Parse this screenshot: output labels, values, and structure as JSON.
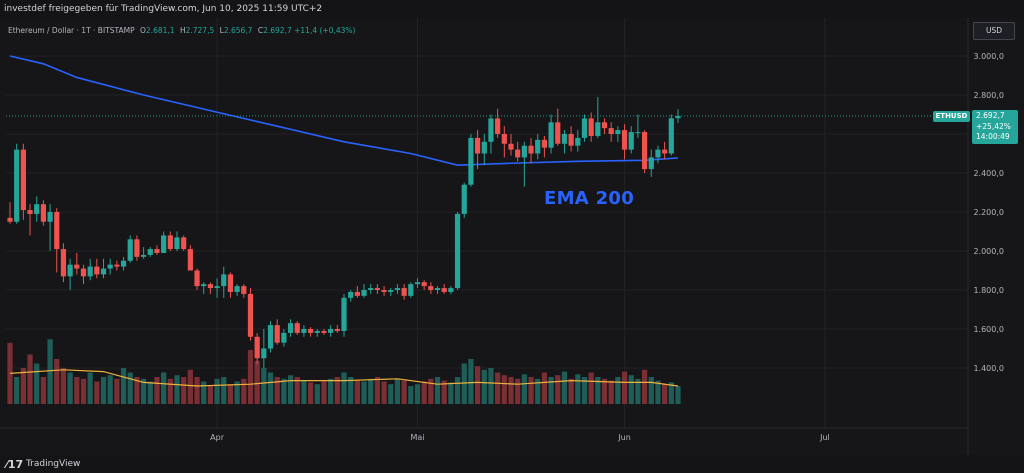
{
  "header": {
    "text": "investdef freigegeben für TradingView.com, Jun 10, 2025 11:59 UTC+2"
  },
  "legend": {
    "symbol": "Ethereum / Dollar · 1T · BITSTAMP",
    "o_label": "O",
    "o": "2.681,1",
    "h_label": "H",
    "h": "2.727,5",
    "l_label": "L",
    "l": "2.656,7",
    "c_label": "C",
    "c": "2.692,7",
    "change": "+11,4 (+0,43%)"
  },
  "currency_button": "USD",
  "price_badge": {
    "symbol": "ETHUSD",
    "price": "2.692,7",
    "change": "+25,42%",
    "countdown": "14:00:49"
  },
  "annotation": "EMA 200",
  "footer": {
    "logo": "⁄17",
    "brand": "TradingView"
  },
  "colors": {
    "up": "#26a69a",
    "down": "#ef5350",
    "ema": "#2962ff",
    "volume_ma": "#f0b13c",
    "background": "#161618"
  },
  "chart_data": {
    "type": "candlestick",
    "title": "Ethereum / Dollar · 1T · BITSTAMP",
    "ylim": [
      1200,
      3100
    ],
    "y_ticks": [
      3000,
      2800,
      2600,
      2400,
      2200,
      2000,
      1800,
      1600,
      1400
    ],
    "y_tick_labels": [
      "3.000,0",
      "2.800,0",
      "2.600,0",
      "2.400,0",
      "2.200,0",
      "2.000,0",
      "1.800,0",
      "1.600,0",
      "1.400,0"
    ],
    "x_tick_labels": [
      "Apr",
      "Mai",
      "Jun",
      "Jul"
    ],
    "x_tick_days": [
      31,
      61,
      92,
      122
    ],
    "last_price": 2692.7,
    "dates_note": "day index 0 = Mar 1, 2025",
    "candles": [
      {
        "day": 0,
        "o": 2170,
        "h": 2250,
        "l": 2140,
        "c": 2150
      },
      {
        "day": 1,
        "o": 2150,
        "h": 2550,
        "l": 2140,
        "c": 2520
      },
      {
        "day": 2,
        "o": 2520,
        "h": 2550,
        "l": 2160,
        "c": 2210
      },
      {
        "day": 3,
        "o": 2210,
        "h": 2240,
        "l": 2080,
        "c": 2190
      },
      {
        "day": 4,
        "o": 2190,
        "h": 2280,
        "l": 2150,
        "c": 2240
      },
      {
        "day": 5,
        "o": 2240,
        "h": 2260,
        "l": 2130,
        "c": 2150
      },
      {
        "day": 6,
        "o": 2150,
        "h": 2240,
        "l": 2000,
        "c": 2200
      },
      {
        "day": 7,
        "o": 2200,
        "h": 2220,
        "l": 1890,
        "c": 2010
      },
      {
        "day": 8,
        "o": 2010,
        "h": 2040,
        "l": 1840,
        "c": 1870
      },
      {
        "day": 9,
        "o": 1870,
        "h": 1960,
        "l": 1800,
        "c": 1930
      },
      {
        "day": 10,
        "o": 1930,
        "h": 1990,
        "l": 1880,
        "c": 1910
      },
      {
        "day": 11,
        "o": 1910,
        "h": 1930,
        "l": 1830,
        "c": 1870
      },
      {
        "day": 12,
        "o": 1870,
        "h": 1960,
        "l": 1850,
        "c": 1920
      },
      {
        "day": 13,
        "o": 1920,
        "h": 1960,
        "l": 1860,
        "c": 1880
      },
      {
        "day": 14,
        "o": 1880,
        "h": 1960,
        "l": 1860,
        "c": 1910
      },
      {
        "day": 15,
        "o": 1910,
        "h": 1960,
        "l": 1880,
        "c": 1930
      },
      {
        "day": 16,
        "o": 1930,
        "h": 1950,
        "l": 1900,
        "c": 1920
      },
      {
        "day": 17,
        "o": 1920,
        "h": 1970,
        "l": 1900,
        "c": 1950
      },
      {
        "day": 18,
        "o": 1950,
        "h": 2080,
        "l": 1940,
        "c": 2060
      },
      {
        "day": 19,
        "o": 2060,
        "h": 2080,
        "l": 1950,
        "c": 1970
      },
      {
        "day": 20,
        "o": 1970,
        "h": 2020,
        "l": 1960,
        "c": 1980
      },
      {
        "day": 21,
        "o": 1980,
        "h": 2020,
        "l": 1970,
        "c": 2010
      },
      {
        "day": 22,
        "o": 2010,
        "h": 2030,
        "l": 1980,
        "c": 1990
      },
      {
        "day": 23,
        "o": 1990,
        "h": 2100,
        "l": 1990,
        "c": 2080
      },
      {
        "day": 24,
        "o": 2080,
        "h": 2100,
        "l": 2000,
        "c": 2010
      },
      {
        "day": 25,
        "o": 2010,
        "h": 2100,
        "l": 2000,
        "c": 2070
      },
      {
        "day": 26,
        "o": 2070,
        "h": 2080,
        "l": 2000,
        "c": 2010
      },
      {
        "day": 27,
        "o": 2010,
        "h": 2030,
        "l": 1900,
        "c": 1900
      },
      {
        "day": 28,
        "o": 1900,
        "h": 1910,
        "l": 1800,
        "c": 1820
      },
      {
        "day": 29,
        "o": 1820,
        "h": 1840,
        "l": 1780,
        "c": 1830
      },
      {
        "day": 30,
        "o": 1830,
        "h": 1840,
        "l": 1780,
        "c": 1810
      },
      {
        "day": 31,
        "o": 1810,
        "h": 1860,
        "l": 1760,
        "c": 1820
      },
      {
        "day": 32,
        "o": 1820,
        "h": 1920,
        "l": 1760,
        "c": 1880
      },
      {
        "day": 33,
        "o": 1880,
        "h": 1890,
        "l": 1760,
        "c": 1790
      },
      {
        "day": 34,
        "o": 1790,
        "h": 1830,
        "l": 1770,
        "c": 1820
      },
      {
        "day": 35,
        "o": 1820,
        "h": 1830,
        "l": 1760,
        "c": 1780
      },
      {
        "day": 36,
        "o": 1780,
        "h": 1810,
        "l": 1540,
        "c": 1560
      },
      {
        "day": 37,
        "o": 1560,
        "h": 1580,
        "l": 1420,
        "c": 1450
      },
      {
        "day": 38,
        "o": 1450,
        "h": 1600,
        "l": 1400,
        "c": 1500
      },
      {
        "day": 39,
        "o": 1500,
        "h": 1640,
        "l": 1480,
        "c": 1620
      },
      {
        "day": 40,
        "o": 1620,
        "h": 1650,
        "l": 1520,
        "c": 1530
      },
      {
        "day": 41,
        "o": 1530,
        "h": 1600,
        "l": 1510,
        "c": 1580
      },
      {
        "day": 42,
        "o": 1580,
        "h": 1650,
        "l": 1560,
        "c": 1630
      },
      {
        "day": 43,
        "o": 1630,
        "h": 1640,
        "l": 1570,
        "c": 1580
      },
      {
        "day": 44,
        "o": 1580,
        "h": 1620,
        "l": 1560,
        "c": 1600
      },
      {
        "day": 45,
        "o": 1600,
        "h": 1610,
        "l": 1560,
        "c": 1580
      },
      {
        "day": 46,
        "o": 1580,
        "h": 1600,
        "l": 1560,
        "c": 1590
      },
      {
        "day": 47,
        "o": 1590,
        "h": 1600,
        "l": 1570,
        "c": 1580
      },
      {
        "day": 48,
        "o": 1580,
        "h": 1620,
        "l": 1560,
        "c": 1600
      },
      {
        "day": 49,
        "o": 1600,
        "h": 1620,
        "l": 1580,
        "c": 1590
      },
      {
        "day": 50,
        "o": 1590,
        "h": 1780,
        "l": 1560,
        "c": 1760
      },
      {
        "day": 51,
        "o": 1760,
        "h": 1800,
        "l": 1740,
        "c": 1790
      },
      {
        "day": 52,
        "o": 1790,
        "h": 1820,
        "l": 1760,
        "c": 1770
      },
      {
        "day": 53,
        "o": 1770,
        "h": 1830,
        "l": 1760,
        "c": 1800
      },
      {
        "day": 54,
        "o": 1800,
        "h": 1830,
        "l": 1780,
        "c": 1810
      },
      {
        "day": 55,
        "o": 1810,
        "h": 1830,
        "l": 1780,
        "c": 1800
      },
      {
        "day": 56,
        "o": 1800,
        "h": 1820,
        "l": 1770,
        "c": 1790
      },
      {
        "day": 57,
        "o": 1790,
        "h": 1810,
        "l": 1770,
        "c": 1800
      },
      {
        "day": 58,
        "o": 1800,
        "h": 1830,
        "l": 1780,
        "c": 1810
      },
      {
        "day": 59,
        "o": 1810,
        "h": 1830,
        "l": 1750,
        "c": 1770
      },
      {
        "day": 60,
        "o": 1770,
        "h": 1840,
        "l": 1760,
        "c": 1830
      },
      {
        "day": 61,
        "o": 1830,
        "h": 1860,
        "l": 1810,
        "c": 1840
      },
      {
        "day": 62,
        "o": 1840,
        "h": 1850,
        "l": 1800,
        "c": 1820
      },
      {
        "day": 63,
        "o": 1820,
        "h": 1840,
        "l": 1780,
        "c": 1800
      },
      {
        "day": 64,
        "o": 1800,
        "h": 1820,
        "l": 1780,
        "c": 1810
      },
      {
        "day": 65,
        "o": 1810,
        "h": 1830,
        "l": 1780,
        "c": 1790
      },
      {
        "day": 66,
        "o": 1790,
        "h": 1820,
        "l": 1780,
        "c": 1810
      },
      {
        "day": 67,
        "o": 1810,
        "h": 2200,
        "l": 1800,
        "c": 2190
      },
      {
        "day": 68,
        "o": 2190,
        "h": 2350,
        "l": 2170,
        "c": 2340
      },
      {
        "day": 69,
        "o": 2340,
        "h": 2600,
        "l": 2330,
        "c": 2580
      },
      {
        "day": 70,
        "o": 2580,
        "h": 2620,
        "l": 2420,
        "c": 2500
      },
      {
        "day": 71,
        "o": 2500,
        "h": 2600,
        "l": 2440,
        "c": 2560
      },
      {
        "day": 72,
        "o": 2560,
        "h": 2700,
        "l": 2500,
        "c": 2680
      },
      {
        "day": 73,
        "o": 2680,
        "h": 2730,
        "l": 2580,
        "c": 2600
      },
      {
        "day": 74,
        "o": 2600,
        "h": 2640,
        "l": 2480,
        "c": 2550
      },
      {
        "day": 75,
        "o": 2550,
        "h": 2600,
        "l": 2490,
        "c": 2520
      },
      {
        "day": 76,
        "o": 2520,
        "h": 2560,
        "l": 2460,
        "c": 2480
      },
      {
        "day": 77,
        "o": 2480,
        "h": 2560,
        "l": 2330,
        "c": 2540
      },
      {
        "day": 78,
        "o": 2540,
        "h": 2580,
        "l": 2450,
        "c": 2500
      },
      {
        "day": 79,
        "o": 2500,
        "h": 2600,
        "l": 2470,
        "c": 2570
      },
      {
        "day": 80,
        "o": 2570,
        "h": 2590,
        "l": 2480,
        "c": 2530
      },
      {
        "day": 81,
        "o": 2530,
        "h": 2700,
        "l": 2500,
        "c": 2660
      },
      {
        "day": 82,
        "o": 2660,
        "h": 2730,
        "l": 2540,
        "c": 2550
      },
      {
        "day": 83,
        "o": 2550,
        "h": 2620,
        "l": 2500,
        "c": 2600
      },
      {
        "day": 84,
        "o": 2600,
        "h": 2640,
        "l": 2510,
        "c": 2540
      },
      {
        "day": 85,
        "o": 2540,
        "h": 2620,
        "l": 2510,
        "c": 2580
      },
      {
        "day": 86,
        "o": 2580,
        "h": 2700,
        "l": 2560,
        "c": 2680
      },
      {
        "day": 87,
        "o": 2680,
        "h": 2710,
        "l": 2560,
        "c": 2590
      },
      {
        "day": 88,
        "o": 2590,
        "h": 2790,
        "l": 2580,
        "c": 2660
      },
      {
        "day": 89,
        "o": 2660,
        "h": 2680,
        "l": 2600,
        "c": 2630
      },
      {
        "day": 90,
        "o": 2630,
        "h": 2660,
        "l": 2560,
        "c": 2600
      },
      {
        "day": 91,
        "o": 2600,
        "h": 2640,
        "l": 2560,
        "c": 2620
      },
      {
        "day": 92,
        "o": 2620,
        "h": 2650,
        "l": 2470,
        "c": 2520
      },
      {
        "day": 93,
        "o": 2520,
        "h": 2640,
        "l": 2500,
        "c": 2610
      },
      {
        "day": 94,
        "o": 2610,
        "h": 2700,
        "l": 2580,
        "c": 2610
      },
      {
        "day": 95,
        "o": 2610,
        "h": 2620,
        "l": 2400,
        "c": 2420
      },
      {
        "day": 96,
        "o": 2420,
        "h": 2520,
        "l": 2380,
        "c": 2480
      },
      {
        "day": 97,
        "o": 2480,
        "h": 2540,
        "l": 2450,
        "c": 2520
      },
      {
        "day": 98,
        "o": 2520,
        "h": 2560,
        "l": 2470,
        "c": 2500
      },
      {
        "day": 99,
        "o": 2500,
        "h": 2700,
        "l": 2490,
        "c": 2681
      },
      {
        "day": 100,
        "o": 2681,
        "h": 2727,
        "l": 2657,
        "c": 2692
      }
    ],
    "ema200": [
      {
        "day": 0,
        "v": 3000
      },
      {
        "day": 5,
        "v": 2960
      },
      {
        "day": 10,
        "v": 2890
      },
      {
        "day": 20,
        "v": 2800
      },
      {
        "day": 30,
        "v": 2720
      },
      {
        "day": 40,
        "v": 2640
      },
      {
        "day": 50,
        "v": 2560
      },
      {
        "day": 60,
        "v": 2500
      },
      {
        "day": 67,
        "v": 2440
      },
      {
        "day": 75,
        "v": 2450
      },
      {
        "day": 85,
        "v": 2460
      },
      {
        "day": 95,
        "v": 2465
      },
      {
        "day": 100,
        "v": 2477
      }
    ],
    "volume_scale_max": 100,
    "volumes": [
      68,
      30,
      40,
      55,
      45,
      30,
      72,
      50,
      40,
      35,
      30,
      28,
      35,
      25,
      30,
      32,
      28,
      40,
      35,
      30,
      28,
      25,
      30,
      35,
      28,
      32,
      30,
      38,
      30,
      25,
      20,
      28,
      30,
      22,
      25,
      28,
      60,
      48,
      40,
      35,
      30,
      28,
      32,
      30,
      26,
      24,
      22,
      25,
      28,
      30,
      35,
      30,
      26,
      25,
      28,
      30,
      25,
      22,
      28,
      26,
      20,
      22,
      25,
      28,
      30,
      26,
      24,
      30,
      45,
      50,
      42,
      38,
      40,
      35,
      32,
      30,
      28,
      33,
      30,
      28,
      35,
      30,
      32,
      36,
      28,
      33,
      30,
      35,
      30,
      28,
      26,
      30,
      36,
      32,
      28,
      38,
      30,
      26,
      22,
      24,
      20
    ],
    "volume_ma": [
      {
        "day": 0,
        "v": 34
      },
      {
        "day": 8,
        "v": 38
      },
      {
        "day": 14,
        "v": 36
      },
      {
        "day": 20,
        "v": 24
      },
      {
        "day": 28,
        "v": 20
      },
      {
        "day": 36,
        "v": 22
      },
      {
        "day": 42,
        "v": 26
      },
      {
        "day": 50,
        "v": 26
      },
      {
        "day": 58,
        "v": 28
      },
      {
        "day": 64,
        "v": 22
      },
      {
        "day": 70,
        "v": 24
      },
      {
        "day": 76,
        "v": 22
      },
      {
        "day": 84,
        "v": 26
      },
      {
        "day": 92,
        "v": 24
      },
      {
        "day": 96,
        "v": 24
      },
      {
        "day": 100,
        "v": 20
      }
    ]
  }
}
